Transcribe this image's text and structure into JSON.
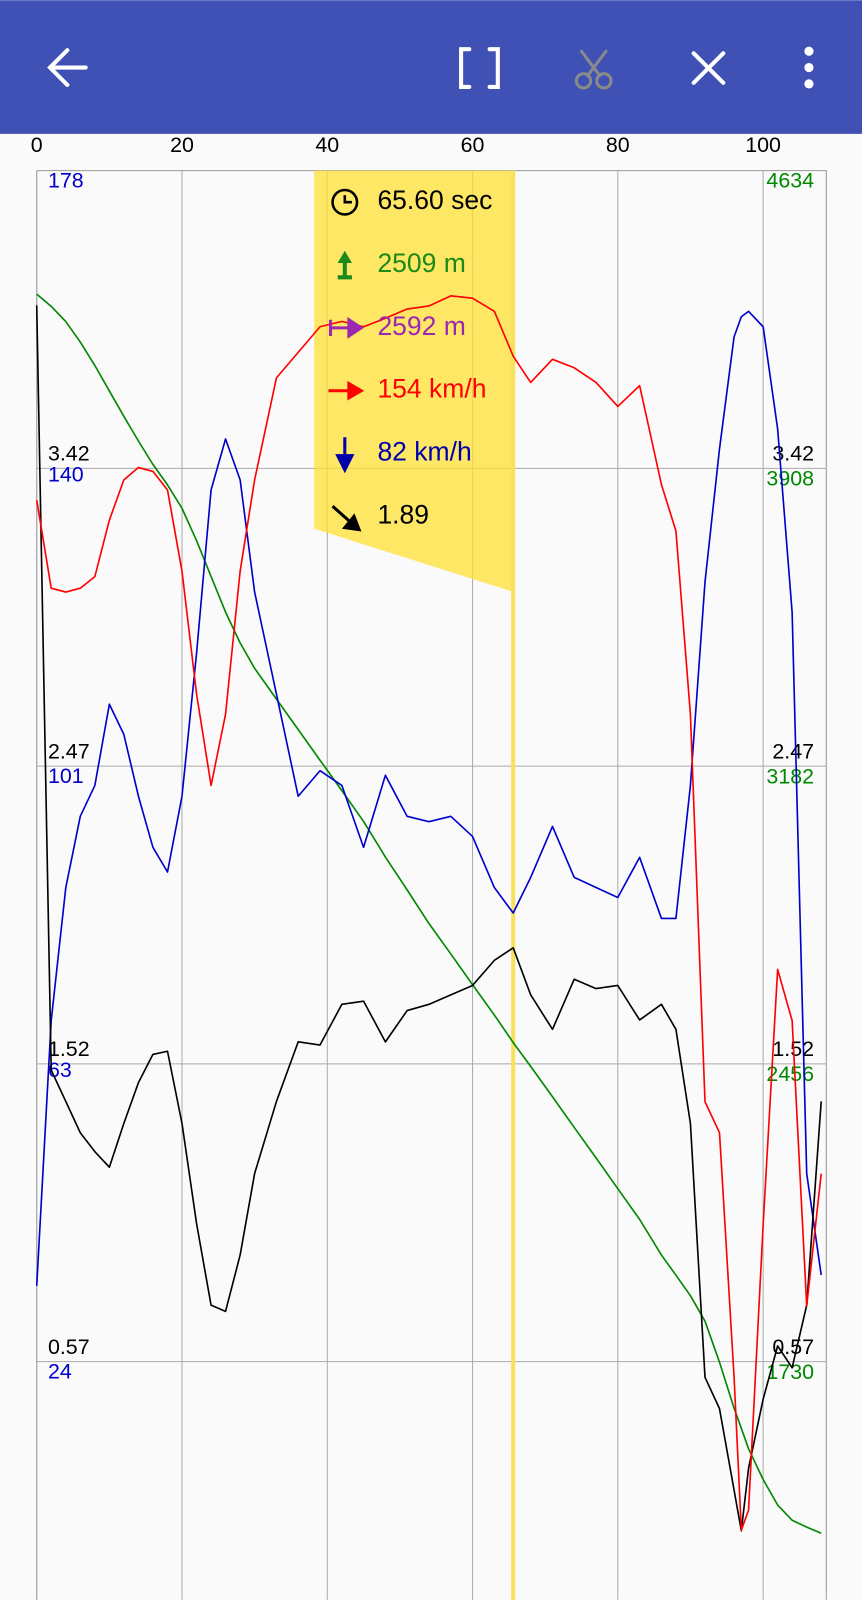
{
  "chart_data": {
    "type": "line",
    "x": [
      0,
      2,
      4,
      6,
      8,
      10,
      12,
      14,
      16,
      18,
      20,
      22,
      24,
      26,
      28,
      30,
      33,
      36,
      39,
      42,
      45,
      48,
      51,
      54,
      57,
      60,
      63,
      65.6,
      68,
      71,
      74,
      77,
      80,
      83,
      86,
      88,
      90,
      92,
      94,
      96,
      97,
      98,
      100,
      102,
      104,
      106,
      108
    ],
    "xlim": [
      0,
      108.7
    ],
    "xticks": [
      0,
      20,
      40,
      60,
      80,
      100
    ],
    "ylim": [
      -0.19,
      4.37
    ],
    "yticks": [
      0.57,
      1.52,
      2.47,
      3.42
    ],
    "y2lim": [
      -6.8,
      178
    ],
    "y2ticks": [
      24,
      63,
      101,
      140,
      178
    ],
    "y3lim": [
      1151,
      4634
    ],
    "y3ticks": [
      1730,
      2456,
      3182,
      3908,
      4634
    ],
    "grid": true,
    "series": [
      {
        "color": "#008800",
        "axis": "y3",
        "values": [
          4333,
          4303,
          4266,
          4216,
          4159,
          4097,
          4035,
          3975,
          3918,
          3868,
          3811,
          3732,
          3645,
          3558,
          3483,
          3421,
          3346,
          3272,
          3197,
          3123,
          3048,
          2961,
          2881,
          2799,
          2725,
          2650,
          2576,
          2509,
          2451,
          2377,
          2302,
          2228,
          2153,
          2078,
          1991,
          1942,
          1892,
          1830,
          1730,
          1618,
          1569,
          1519,
          1444,
          1382,
          1345,
          1328,
          1313
        ]
      },
      {
        "color": "#0000cc",
        "axis": "y2",
        "values": [
          33.8,
          68.1,
          85.3,
          94.5,
          98.5,
          109.0,
          105.1,
          97.1,
          90.5,
          87.3,
          97.1,
          115.6,
          136.7,
          143.3,
          138.0,
          123.5,
          110.3,
          97.1,
          100.4,
          98.5,
          90.5,
          99.8,
          94.5,
          93.8,
          94.5,
          91.9,
          85.3,
          82,
          86.6,
          93.2,
          86.6,
          85.3,
          84.0,
          89.2,
          81.3,
          81.3,
          98.5,
          124.8,
          142.0,
          156.5,
          159.1,
          159.8,
          157.8,
          144.6,
          120.9,
          48.3,
          35.2
        ]
      },
      {
        "color": "#000000",
        "axis": "y",
        "values": [
          3.94,
          1.5,
          1.4,
          1.3,
          1.24,
          1.19,
          1.33,
          1.46,
          1.55,
          1.56,
          1.33,
          1.01,
          0.75,
          0.73,
          0.91,
          1.17,
          1.4,
          1.59,
          1.58,
          1.71,
          1.72,
          1.59,
          1.69,
          1.71,
          1.74,
          1.77,
          1.85,
          1.89,
          1.74,
          1.63,
          1.79,
          1.76,
          1.77,
          1.66,
          1.71,
          1.63,
          1.33,
          0.52,
          0.42,
          0.16,
          0.03,
          0.23,
          0.45,
          0.62,
          0.55,
          0.75,
          1.4
        ]
      },
      {
        "color": "#ff0000",
        "axis": "y2",
        "values": [
          135.4,
          124.0,
          123.5,
          124.0,
          125.5,
          132.8,
          138.0,
          139.6,
          139.1,
          136.7,
          126.2,
          110.3,
          98.5,
          107.7,
          126.2,
          138.0,
          151.2,
          154.5,
          157.8,
          158.5,
          157.8,
          158.9,
          160.1,
          160.5,
          161.8,
          161.5,
          159.8,
          154,
          150.6,
          153.6,
          152.5,
          150.6,
          147.5,
          150.2,
          137.4,
          131.4,
          107.7,
          57.6,
          53.6,
          22.0,
          2.2,
          4.8,
          41.7,
          74.7,
          68.1,
          31.2,
          48.3
        ]
      }
    ],
    "cursor_x": 65.6,
    "readout": [
      {
        "label": "65.60 sec",
        "color": "#000000"
      },
      {
        "label": "2509 m",
        "color": "#1a8a1a"
      },
      {
        "label": "2592 m",
        "color": "#9c27b0"
      },
      {
        "label": "154 km/h",
        "color": "#ff0000"
      },
      {
        "label": "82 km/h",
        "color": "#0000aa"
      },
      {
        "label": "1.89",
        "color": "#000000"
      }
    ]
  }
}
